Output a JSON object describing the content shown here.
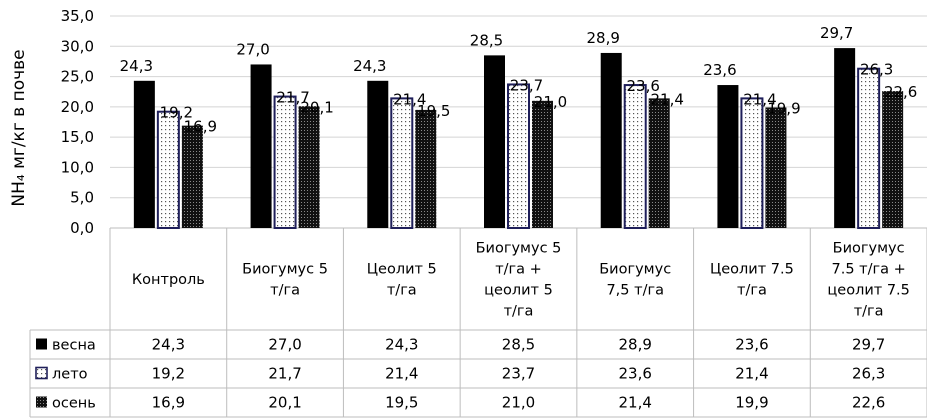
{
  "chart_data": {
    "type": "bar",
    "ylabel": "NH₄ мг/кг в почве",
    "ylim": [
      0,
      35
    ],
    "yticks": [
      "0,0",
      "5,0",
      "10,0",
      "15,0",
      "20,0",
      "25,0",
      "30,0",
      "35,0"
    ],
    "grid": true,
    "legend": "data-table",
    "categories": [
      [
        "Контроль"
      ],
      [
        "Биогумус 5",
        "т/га"
      ],
      [
        "Цеолит 5",
        "т/га"
      ],
      [
        "Биогумус 5",
        "т/га +",
        "цеолит 5",
        "т/га"
      ],
      [
        "Биогумус",
        "7,5 т/га"
      ],
      [
        "Цеолит 7.5",
        "т/га"
      ],
      [
        "Биогумус",
        "7.5 т/га +",
        "цеолит 7.5",
        "т/га"
      ]
    ],
    "series": [
      {
        "name": "весна",
        "pattern": "solid",
        "color": "#000000",
        "values": [
          24.3,
          27.0,
          24.3,
          28.5,
          28.9,
          23.6,
          29.7
        ],
        "labels": [
          "24,3",
          "27,0",
          "24,3",
          "28,5",
          "28,9",
          "23,6",
          "29,7"
        ]
      },
      {
        "name": "лето",
        "pattern": "dotted-light",
        "color": "#1f1f5a",
        "values": [
          19.2,
          21.7,
          21.4,
          23.7,
          23.6,
          21.4,
          26.3
        ],
        "labels": [
          "19,2",
          "21,7",
          "21,4",
          "23,7",
          "23,6",
          "21,4",
          "26,3"
        ]
      },
      {
        "name": "осень",
        "pattern": "dotted-dark",
        "color": "#222222",
        "values": [
          16.9,
          20.1,
          19.5,
          21.0,
          21.4,
          19.9,
          22.6
        ],
        "labels": [
          "16,9",
          "20,1",
          "19,5",
          "21,0",
          "21,4",
          "19,9",
          "22,6"
        ]
      }
    ]
  }
}
